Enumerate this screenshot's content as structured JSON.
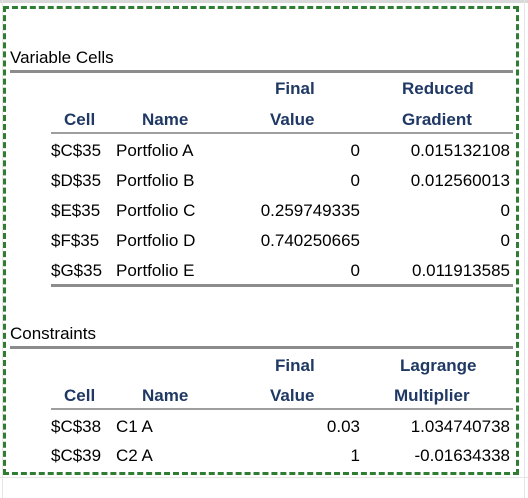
{
  "variable_cells": {
    "title": "Variable Cells",
    "headers": {
      "cell": "Cell",
      "name": "Name",
      "value_line1": "Final",
      "value_line2": "Value",
      "gradient_line1": "Reduced",
      "gradient_line2": "Gradient"
    },
    "rows": [
      {
        "cell": "$C$35",
        "name": "Portfolio A",
        "value": "0",
        "gradient": "0.015132108"
      },
      {
        "cell": "$D$35",
        "name": "Portfolio B",
        "value": "0",
        "gradient": "0.012560013"
      },
      {
        "cell": "$E$35",
        "name": "Portfolio C",
        "value": "0.259749335",
        "gradient": "0"
      },
      {
        "cell": "$F$35",
        "name": "Portfolio D",
        "value": "0.740250665",
        "gradient": "0"
      },
      {
        "cell": "$G$35",
        "name": "Portfolio E",
        "value": "0",
        "gradient": "0.011913585"
      }
    ]
  },
  "constraints": {
    "title": "Constraints",
    "headers": {
      "cell": "Cell",
      "name": "Name",
      "value_line1": "Final",
      "value_line2": "Value",
      "multiplier_line1": "Lagrange",
      "multiplier_line2": "Multiplier"
    },
    "rows": [
      {
        "cell": "$C$38",
        "name": "C1 A",
        "value": "0.03",
        "multiplier": "1.034740738"
      },
      {
        "cell": "$C$39",
        "name": "C2 A",
        "value": "1",
        "multiplier": "-0.01634338"
      }
    ]
  },
  "colors": {
    "header_text": "#1f3864",
    "marquee": "#2e7d32",
    "rule": "#8c8c8c"
  }
}
